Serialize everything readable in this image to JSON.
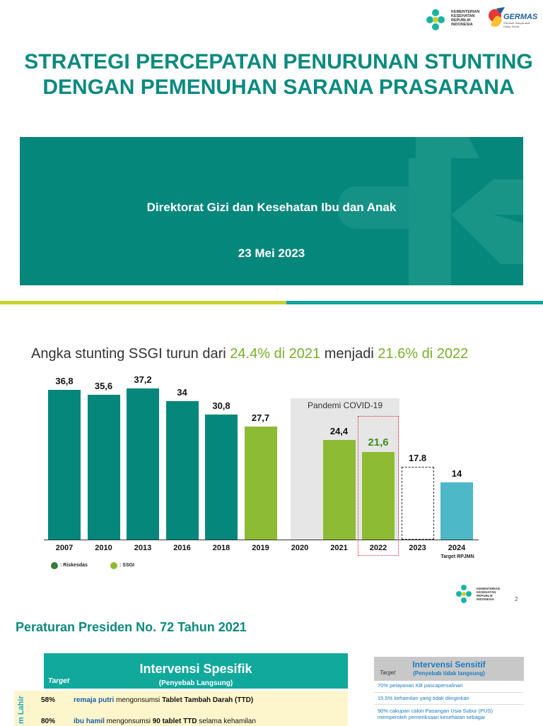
{
  "header": {
    "kemenkes_text": "KEMENTERIAN KESEHATAN REPUBLIK INDONESIA",
    "germas_text": "GERMAS",
    "germas_sub": "Gerakan Masyarakat Hidup Sehat",
    "title_line1": "STRATEGI PERCEPATAN PENURUNAN STUNTING",
    "title_line2": "DENGAN PEMENUHAN SARANA PRASARANA"
  },
  "banner": {
    "subtitle": "Direktorat Gizi dan Kesehatan Ibu dan Anak",
    "date": "23 Mei 2023",
    "color": "#05877b"
  },
  "slide2": {
    "headline_pre": "Angka stunting SSGI turun dari ",
    "headline_a": "24.4% di 2021",
    "headline_mid": " menjadi ",
    "headline_b": "21.6% di 2022",
    "covid_label": "Pandemi COVID-19",
    "rpjmn_label": "Target RPJMN",
    "legend": {
      "riskesdas": ": Riskesdas",
      "ssgi": ": SSGI"
    },
    "logo_text": "KEMENTERIAN KESEHATAN REPUBLIK INDONESIA",
    "page_number": "2"
  },
  "chart_data": {
    "type": "bar",
    "title": "",
    "categories": [
      "2007",
      "2010",
      "2013",
      "2016",
      "2018",
      "2019",
      "2020",
      "2021",
      "2022",
      "2023",
      "2024"
    ],
    "series": [
      {
        "name": "Riskesdas",
        "color": "#05877b",
        "values": [
          36.8,
          35.6,
          37.2,
          34,
          30.8,
          null,
          null,
          null,
          null,
          null,
          null
        ]
      },
      {
        "name": "SSGI",
        "color": "#8dbb34",
        "values": [
          null,
          null,
          null,
          null,
          null,
          27.7,
          null,
          24.4,
          21.6,
          null,
          null
        ]
      },
      {
        "color": "#4cb8c8",
        "values": [
          null,
          null,
          null,
          null,
          null,
          null,
          null,
          null,
          null,
          17.8,
          14
        ]
      }
    ],
    "value_labels": [
      "36,8",
      "35,6",
      "37,2",
      "34",
      "30,8",
      "27,7",
      "",
      "24,4",
      "21,6",
      "17.8",
      "14"
    ],
    "ylim": [
      0,
      40
    ],
    "xlabel": "",
    "ylabel": ""
  },
  "slide3": {
    "title": "Peraturan Presiden No. 72 Tahun 2021",
    "specific": {
      "title": "Intervensi Spesifik",
      "subtitle": "(Penyebab Langsung)",
      "target": "Target",
      "side_label": "m Lahir",
      "rows": [
        {
          "pct": "58%",
          "bold": "remaja putri",
          "text": " mengonsumsi ",
          "bold2": "Tablet Tambah Darah (TTD)"
        },
        {
          "pct": "80%",
          "bold": "ibu hamil",
          "text": " mengonsumsi ",
          "bold2": "90 tablet TTD",
          "tail": " selama kehamilan"
        }
      ]
    },
    "sensitive": {
      "title": "Intervensi Sensitif",
      "subtitle": "(Penyebab tidak langsung)",
      "target": "Target",
      "rows": [
        "70% pelayanan KB pascapersalinan",
        "15.5% kehamilan yang tidak diinginkan",
        "90% cakupan calon Pasangan Usia Subur (PUS) memperoleh pemeriksaan kesehatan sebagai"
      ]
    }
  }
}
